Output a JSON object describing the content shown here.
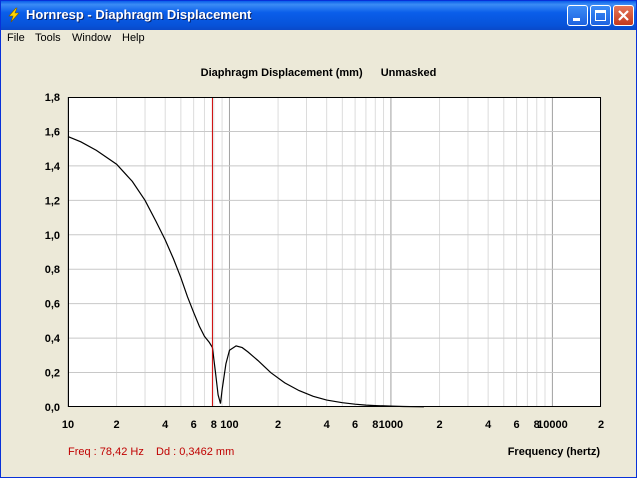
{
  "window": {
    "title": "Hornresp - Diaphragm Displacement",
    "icon": "lightning-bolt-icon"
  },
  "menu": [
    "File",
    "Tools",
    "Window",
    "Help"
  ],
  "chart_data": {
    "type": "line",
    "title": "Diaphragm Displacement (mm)",
    "subtitle": "Unmasked",
    "xlabel": "Frequency (hertz)",
    "ylabel": "",
    "xscale": "log",
    "xlim": [
      10,
      20000
    ],
    "ylim": [
      0,
      1.8
    ],
    "grid": true,
    "y_ticks": [
      "0,0",
      "0,2",
      "0,4",
      "0,6",
      "0,8",
      "1,0",
      "1,2",
      "1,4",
      "1,6",
      "1,8"
    ],
    "x_ticks": [
      {
        "v": 10,
        "label": "10"
      },
      {
        "v": 20,
        "label": "2"
      },
      {
        "v": 40,
        "label": "4"
      },
      {
        "v": 60,
        "label": "6"
      },
      {
        "v": 80,
        "label": "8"
      },
      {
        "v": 100,
        "label": "100"
      },
      {
        "v": 200,
        "label": "2"
      },
      {
        "v": 400,
        "label": "4"
      },
      {
        "v": 600,
        "label": "6"
      },
      {
        "v": 800,
        "label": "8"
      },
      {
        "v": 1000,
        "label": "1000"
      },
      {
        "v": 2000,
        "label": "2"
      },
      {
        "v": 4000,
        "label": "4"
      },
      {
        "v": 6000,
        "label": "6"
      },
      {
        "v": 8000,
        "label": "8"
      },
      {
        "v": 10000,
        "label": "10000"
      },
      {
        "v": 20000,
        "label": "2"
      }
    ],
    "series": [
      {
        "color": "#000000",
        "x": [
          10,
          12,
          15,
          20,
          25,
          30,
          35,
          40,
          45,
          50,
          55,
          60,
          65,
          70,
          75,
          78.4,
          82,
          85,
          88,
          90,
          95,
          100,
          110,
          120,
          130,
          150,
          180,
          220,
          270,
          330,
          400,
          500,
          600,
          700,
          800,
          1000,
          1200,
          1600
        ],
        "y": [
          1.57,
          1.54,
          1.49,
          1.41,
          1.31,
          1.2,
          1.08,
          0.97,
          0.86,
          0.75,
          0.64,
          0.55,
          0.47,
          0.41,
          0.375,
          0.346,
          0.2,
          0.07,
          0.02,
          0.1,
          0.25,
          0.33,
          0.355,
          0.345,
          0.32,
          0.27,
          0.2,
          0.14,
          0.095,
          0.062,
          0.04,
          0.025,
          0.016,
          0.011,
          0.008,
          0.005,
          0.003,
          0.001
        ]
      }
    ],
    "marker": {
      "x": 78.42,
      "color": "#CC0000"
    }
  },
  "readout": {
    "freq": "Freq : 78,42 Hz",
    "dd": "Dd : 0,3462 mm"
  }
}
